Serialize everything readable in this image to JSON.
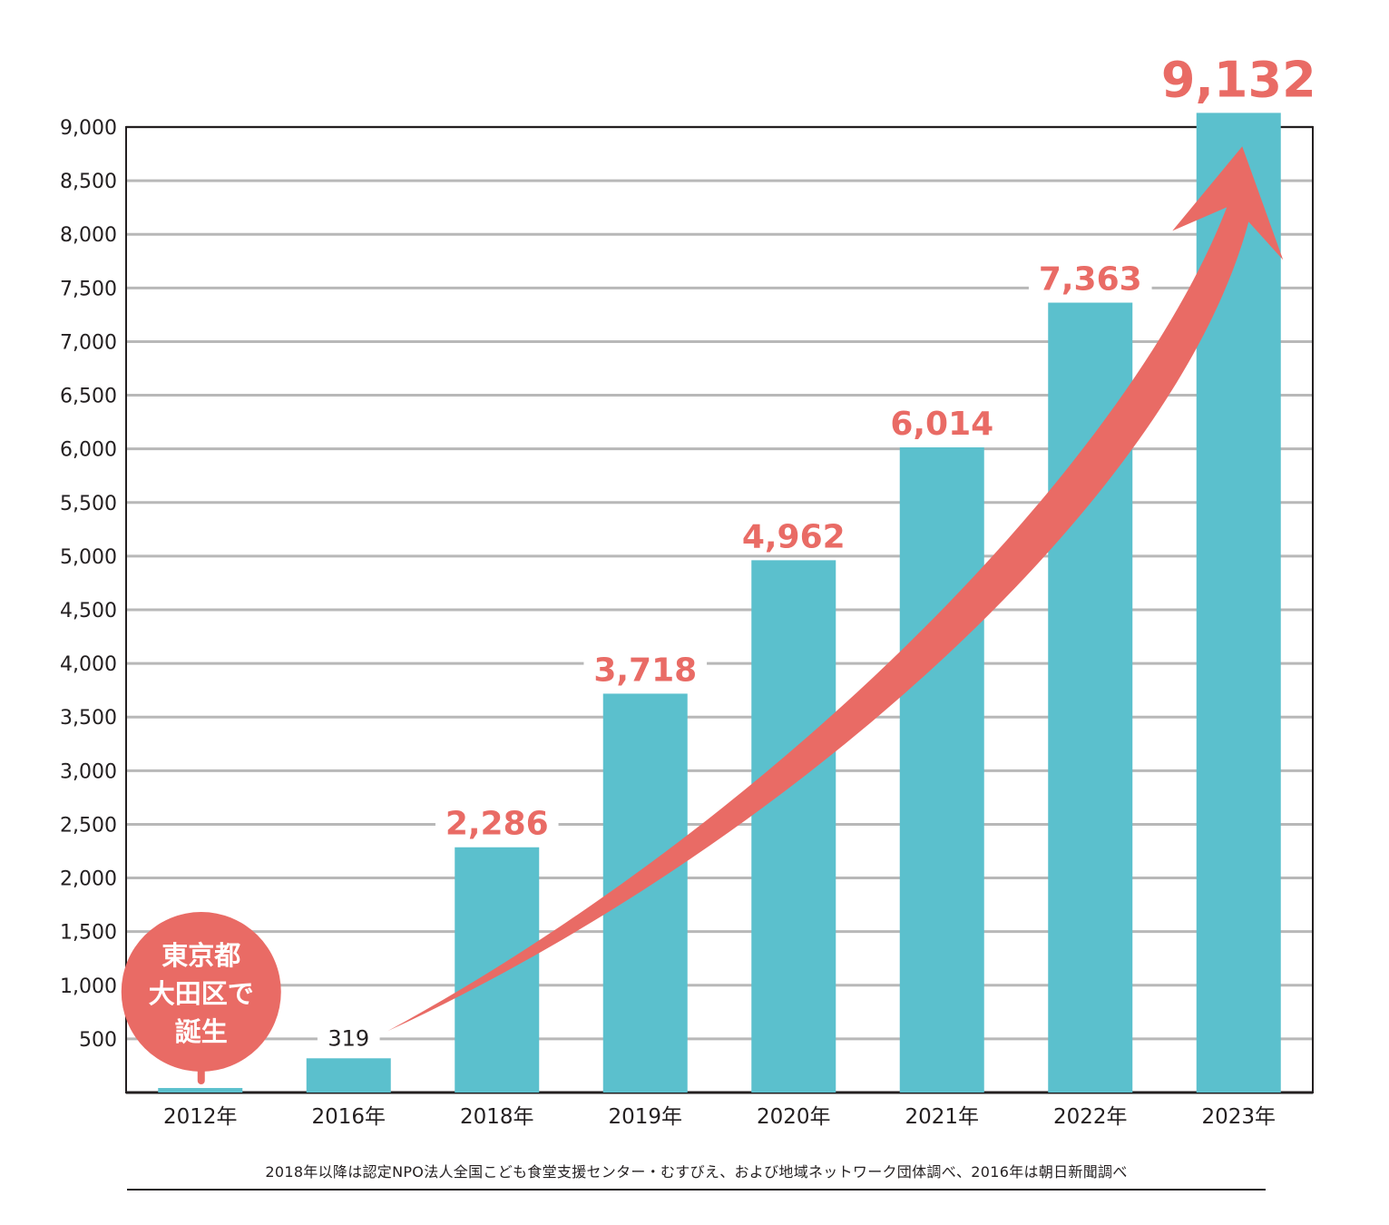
{
  "chart_data": {
    "type": "bar",
    "categories": [
      "2012年",
      "2016年",
      "2018年",
      "2019年",
      "2020年",
      "2021年",
      "2022年",
      "2023年"
    ],
    "values": [
      42,
      319,
      2286,
      3718,
      4962,
      6014,
      7363,
      9132
    ],
    "value_labels": [
      "",
      "319",
      "2,286",
      "3,718",
      "4,962",
      "6,014",
      "7,363",
      "9,132"
    ],
    "y_ticks": [
      "500",
      "1,000",
      "1,500",
      "2,000",
      "2,500",
      "3,000",
      "3,500",
      "4,000",
      "4,500",
      "5,000",
      "5,500",
      "6,000",
      "6,500",
      "7,000",
      "7,500",
      "8,000",
      "8,500",
      "9,000"
    ],
    "y_tick_values": [
      500,
      1000,
      1500,
      2000,
      2500,
      3000,
      3500,
      4000,
      4500,
      5000,
      5500,
      6000,
      6500,
      7000,
      7500,
      8000,
      8500,
      9000
    ],
    "ylim": [
      0,
      9000
    ],
    "grid": true,
    "legend": "none",
    "title": "",
    "xlabel": "",
    "ylabel": "",
    "annotation": {
      "lines": [
        "東京都",
        "大田区で",
        "誕生"
      ],
      "target_category": "2012年"
    },
    "trend_arrow": {
      "from_category": "2016年",
      "to_category": "2023年"
    }
  },
  "colors": {
    "bar": "#5bc0cd",
    "accent": "#e96b65",
    "grid": "#b8b8b8",
    "axis": "#231f20"
  },
  "source_note": "2018年以降は認定NPO法人全国こども食堂支援センター・むすびえ、および地域ネットワーク団体調べ、2016年は朝日新聞調べ"
}
